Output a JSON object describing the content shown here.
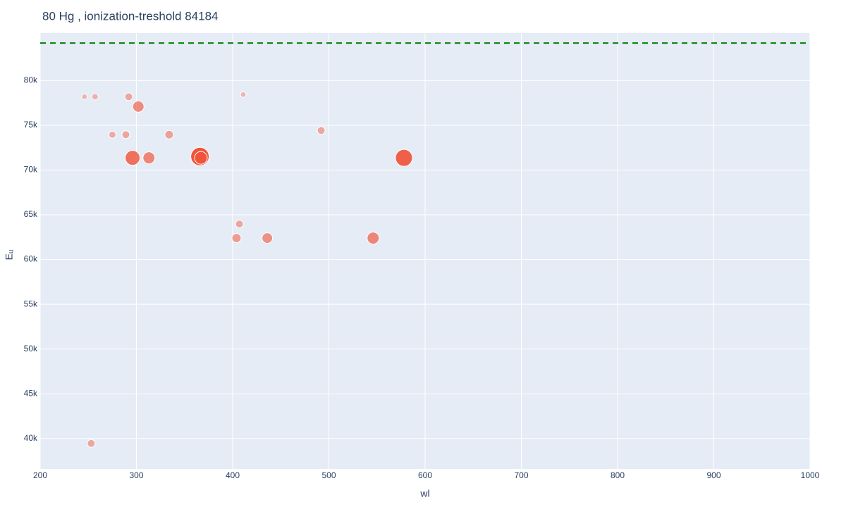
{
  "chart_data": {
    "type": "scatter",
    "title": "80 Hg , ionization-treshold 84184",
    "x_label": "wl",
    "y_label": "Eᵤ",
    "color": "#ef553b",
    "threshold": 84184,
    "threshold_color": "#008000",
    "xlim": [
      200,
      1000
    ],
    "xticks": [
      200,
      300,
      400,
      500,
      600,
      700,
      800,
      900,
      1000
    ],
    "ylim": [
      36600,
      85300
    ],
    "yticks": [
      {
        "value": 40000,
        "label": "40k"
      },
      {
        "value": 45000,
        "label": "45k"
      },
      {
        "value": 50000,
        "label": "50k"
      },
      {
        "value": 55000,
        "label": "55k"
      },
      {
        "value": 60000,
        "label": "60k"
      },
      {
        "value": 65000,
        "label": "65k"
      },
      {
        "value": 70000,
        "label": "70k"
      },
      {
        "value": 75000,
        "label": "75k"
      },
      {
        "value": 80000,
        "label": "80k"
      }
    ],
    "grid": true,
    "x": [
      246,
      257,
      292,
      411,
      302,
      275,
      289,
      334,
      492,
      296,
      313,
      366,
      367,
      578,
      407,
      404,
      436,
      546,
      253
    ],
    "values": [
      78190,
      78190,
      78190,
      78430,
      77090,
      73950,
      73950,
      73950,
      74420,
      71360,
      71360,
      71510,
      71360,
      71360,
      63970,
      62400,
      62400,
      62400,
      39450
    ],
    "sizes": [
      8,
      9,
      11,
      8,
      16,
      10,
      11,
      12,
      11,
      21,
      17,
      26,
      18,
      24,
      11,
      13,
      15,
      17,
      11
    ]
  }
}
